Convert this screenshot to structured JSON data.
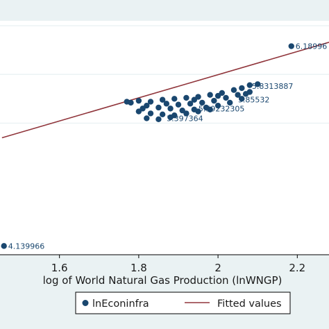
{
  "chart_data": {
    "type": "scatter",
    "title": "",
    "xlabel": "log of World Natural Gas Production (lnWNGP)",
    "ylabel": "",
    "x_ticks": [
      1.6,
      1.8,
      2,
      2.2
    ],
    "x_tick_labels": [
      "1.6",
      "1.8",
      "2",
      "2.2"
    ],
    "xlim": [
      1.45,
      2.28
    ],
    "ylim": [
      4.05,
      6.45
    ],
    "y_grid": [
      5.4,
      5.9,
      6.4
    ],
    "grid": true,
    "colors": {
      "background": "#eaf2f3",
      "plot_bg": "#ffffff",
      "points": "#1a476f",
      "fit": "#90353b",
      "grid": "#eaf2f3"
    },
    "series": [
      {
        "name": "lnEconinfra",
        "kind": "scatter",
        "points": [
          [
            1.46,
            4.139966
          ],
          [
            2.185,
            6.189966
          ],
          [
            1.77,
            5.62
          ],
          [
            1.8,
            5.63
          ],
          [
            1.83,
            5.62
          ],
          [
            1.86,
            5.64
          ],
          [
            1.89,
            5.65
          ],
          [
            1.92,
            5.66
          ],
          [
            1.95,
            5.67
          ],
          [
            1.98,
            5.69
          ],
          [
            2.01,
            5.71
          ],
          [
            2.04,
            5.74
          ],
          [
            2.06,
            5.76
          ],
          [
            2.08,
            5.79
          ],
          [
            1.9,
            5.59
          ],
          [
            1.93,
            5.6
          ],
          [
            1.96,
            5.61
          ],
          [
            1.99,
            5.63
          ],
          [
            2.02,
            5.66
          ],
          [
            2.05,
            5.69
          ],
          [
            2.08,
            5.72
          ],
          [
            1.82,
            5.58
          ],
          [
            1.85,
            5.56
          ],
          [
            1.88,
            5.55
          ],
          [
            1.91,
            5.53
          ],
          [
            1.94,
            5.54
          ],
          [
            1.97,
            5.56
          ],
          [
            2.0,
            5.58
          ],
          [
            2.03,
            5.61
          ],
          [
            2.06,
            5.65
          ],
          [
            1.8,
            5.52
          ],
          [
            1.83,
            5.5
          ],
          [
            1.86,
            5.49
          ],
          [
            1.89,
            5.48
          ],
          [
            1.92,
            5.5
          ],
          [
            1.95,
            5.52
          ],
          [
            1.98,
            5.54
          ],
          [
            1.82,
            5.45
          ],
          [
            1.85,
            5.44
          ],
          [
            1.88,
            5.46
          ],
          [
            1.78,
            5.61
          ],
          [
            2.1,
            5.8
          ],
          [
            2.0,
            5.68
          ],
          [
            1.94,
            5.64
          ],
          [
            1.87,
            5.6
          ],
          [
            1.81,
            5.55
          ],
          [
            2.07,
            5.7
          ]
        ],
        "labels": [
          {
            "x": 1.46,
            "y": 4.139966,
            "text": "4.139966"
          },
          {
            "x": 2.185,
            "y": 6.189966,
            "text": "6.18996"
          },
          {
            "x": 2.075,
            "y": 5.78,
            "text": "5.8313887"
          },
          {
            "x": 2.04,
            "y": 5.64,
            "text": "5.85532"
          },
          {
            "x": 1.94,
            "y": 5.55,
            "text": "5.59232305"
          },
          {
            "x": 1.86,
            "y": 5.45,
            "text": "5.397364"
          }
        ]
      },
      {
        "name": "Fitted values",
        "kind": "line",
        "points": [
          [
            1.455,
            5.25
          ],
          [
            2.28,
            6.23
          ]
        ]
      }
    ],
    "legend": {
      "position": "bottom",
      "entries": [
        "lnEconinfra",
        "Fitted values"
      ]
    }
  }
}
